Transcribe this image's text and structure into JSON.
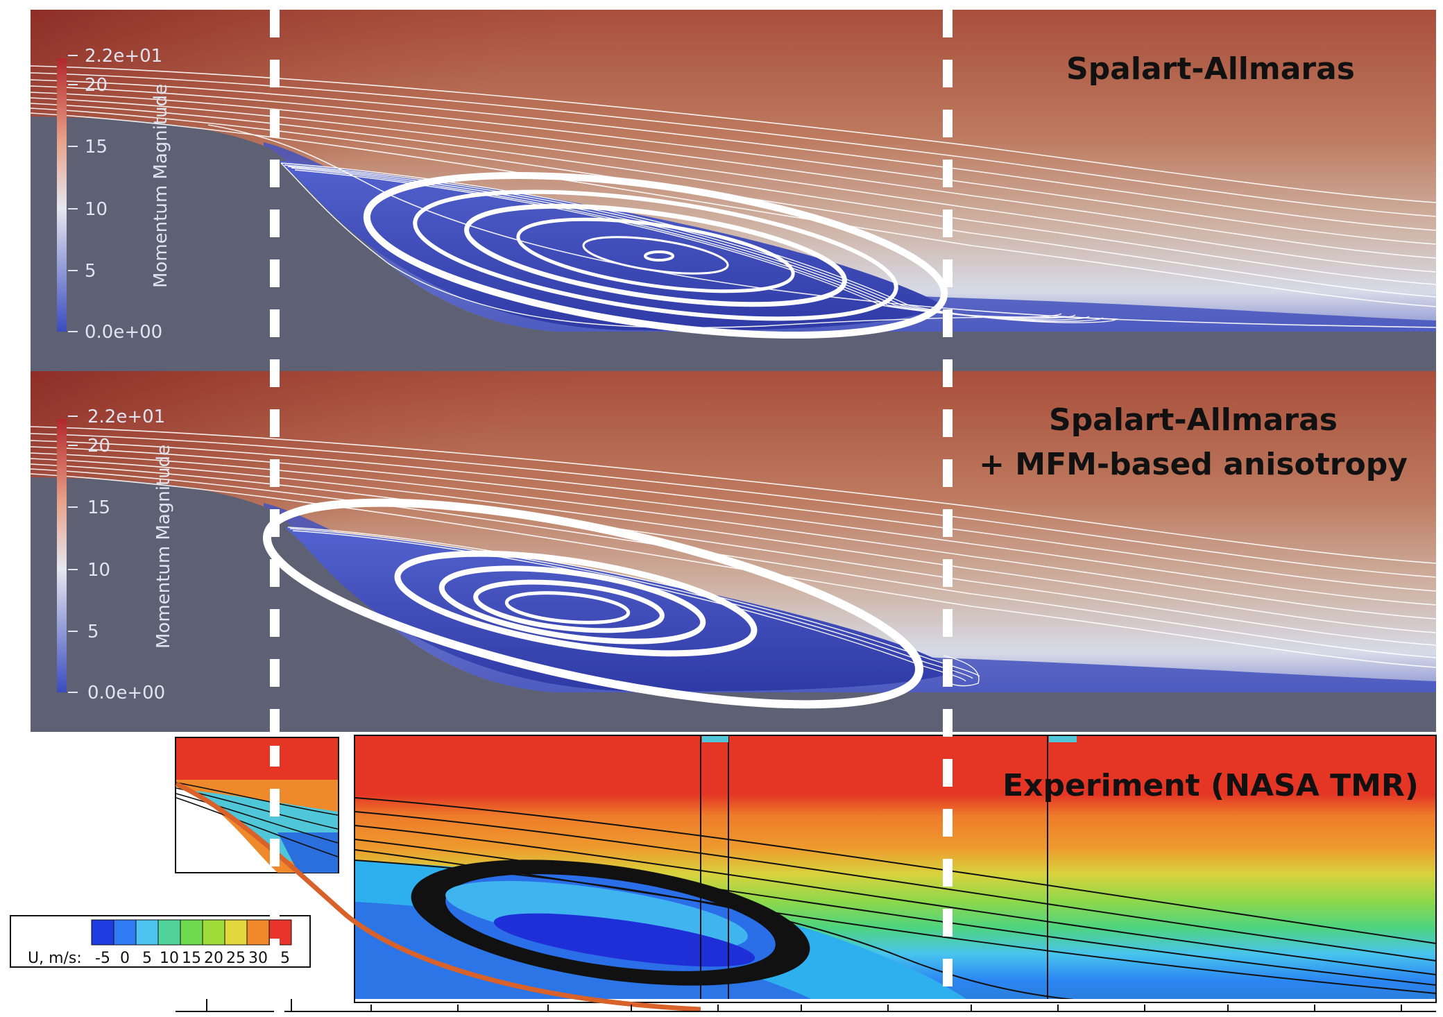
{
  "panels": {
    "sa": {
      "title_lines": [
        "Spalart-Allmaras"
      ],
      "colorbar": {
        "title": "Momentum Magnitude",
        "ticks": [
          "2.2e+01",
          "20",
          "15",
          "10",
          "5",
          "0.0e+00"
        ]
      }
    },
    "sa_mfm": {
      "title_lines": [
        "Spalart-Allmaras",
        "+ MFM-based anisotropy"
      ],
      "colorbar": {
        "title": "Momentum Magnitude",
        "ticks": [
          "2.2e+01",
          "20",
          "15",
          "10",
          "5",
          "0.0e+00"
        ]
      }
    },
    "experiment": {
      "title": "Experiment (NASA TMR)",
      "legend": {
        "label": "U, m/s:",
        "ticks": [
          "-5",
          "0",
          "5",
          "10",
          "15",
          "20",
          "25",
          "30",
          "35"
        ],
        "colors": [
          "#1e3ce0",
          "#2f7cf5",
          "#4dc3f0",
          "#52d39a",
          "#6fda4d",
          "#9edc3a",
          "#e2d83e",
          "#f08a2a",
          "#e8342a"
        ]
      }
    }
  },
  "colors": {
    "wall": "#5d6173",
    "high_momentum": "#b86f55",
    "low_momentum": "#3341b8",
    "streamline": "#ffffff",
    "dashed_marker": "#ffffff",
    "exp_wall_curve": "#d9622b"
  }
}
